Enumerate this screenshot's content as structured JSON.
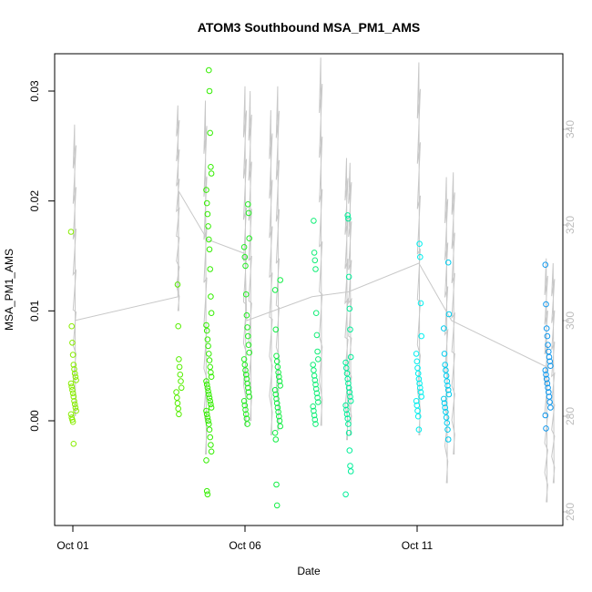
{
  "chart_data": {
    "type": "scatter",
    "title": "ATOM3 Southbound MSA_PM1_AMS",
    "xlabel": "Date",
    "ylabel": "MSA_PM1_AMS",
    "x_ticks": [
      {
        "day": 1,
        "label": "Oct 01"
      },
      {
        "day": 6,
        "label": "Oct 06"
      },
      {
        "day": 11,
        "label": "Oct 11"
      }
    ],
    "xlim": [
      1,
      15
    ],
    "ylim": [
      -0.009,
      0.033
    ],
    "y_ticks": [
      {
        "value": 0.0,
        "label": "0.00"
      },
      {
        "value": 0.01,
        "label": "0.01"
      },
      {
        "value": 0.02,
        "label": "0.02"
      },
      {
        "value": 0.03,
        "label": "0.03"
      }
    ],
    "right_axis": {
      "ylim": [
        258,
        358
      ],
      "ticks": [
        {
          "value": 260,
          "label": "260"
        },
        {
          "value": 280,
          "label": "280"
        },
        {
          "value": 300,
          "label": "300"
        },
        {
          "value": 320,
          "label": "320"
        },
        {
          "value": 340,
          "label": "340"
        }
      ],
      "color": "#bdbdbd"
    },
    "clusters": [
      {
        "day": 1.02,
        "color": "#88ee00",
        "values": [
          0.0172,
          0.0086,
          0.0071,
          0.006,
          0.0051,
          0.0047,
          0.0043,
          0.004,
          0.0037,
          0.0034,
          0.0031,
          0.0028,
          0.0025,
          0.0022,
          0.0018,
          0.0015,
          0.0012,
          0.0009,
          0.0006,
          0.0003,
          0.0001,
          -0.0001,
          -0.0021
        ]
      },
      {
        "day": 4.08,
        "color": "#55ee00",
        "values": [
          0.0124,
          0.0086,
          0.0056,
          0.0049,
          0.0042,
          0.0036,
          0.003,
          0.0026,
          0.0021,
          0.0016,
          0.0011,
          0.0006
        ]
      },
      {
        "day": 4.95,
        "color": "#33ee00",
        "values": [
          0.0319,
          0.03,
          0.0262,
          0.0231,
          0.0225,
          0.021,
          0.0198,
          0.0188,
          0.0177,
          0.0165,
          0.0156,
          0.0138,
          0.0113,
          0.0098,
          0.0087,
          0.0082,
          0.0074,
          0.0068,
          0.0061,
          0.0055,
          0.0049,
          0.0044,
          0.004,
          0.0036,
          0.0033,
          0.003,
          0.0027,
          0.0024,
          0.0021,
          0.0018,
          0.0015,
          0.0012,
          0.0009,
          0.0006,
          0.0003,
          0.0,
          -0.0003,
          -0.0008,
          -0.0015,
          -0.0022,
          -0.0028,
          -0.0036,
          -0.0064,
          -0.0067
        ]
      },
      {
        "day": 6.05,
        "color": "#22ee22",
        "values": [
          0.0197,
          0.0189,
          0.0166,
          0.0158,
          0.0149,
          0.0141,
          0.0115,
          0.0096,
          0.0085,
          0.0077,
          0.0069,
          0.0062,
          0.0056,
          0.0051,
          0.0046,
          0.0042,
          0.0038,
          0.0034,
          0.003,
          0.0026,
          0.0022,
          0.0018,
          0.0014,
          0.001,
          0.0006,
          0.0002,
          -0.0003
        ]
      },
      {
        "day": 6.95,
        "color": "#11ee44",
        "values": [
          0.0128,
          0.0119,
          0.0083,
          0.0059,
          0.0054,
          0.0049,
          0.0044,
          0.004,
          0.0036,
          0.0032,
          0.0028,
          0.0024,
          0.002,
          0.0016,
          0.0012,
          0.0008,
          0.0004,
          0.0,
          -0.0005,
          -0.0011,
          -0.0017,
          -0.0058,
          -0.0077
        ]
      },
      {
        "day": 8.05,
        "color": "#11ee77",
        "values": [
          0.0182,
          0.0153,
          0.0146,
          0.0138,
          0.0098,
          0.0078,
          0.0063,
          0.0056,
          0.0051,
          0.0046,
          0.0041,
          0.0037,
          0.0033,
          0.0029,
          0.0025,
          0.0021,
          0.0017,
          0.0013,
          0.0009,
          0.0005,
          0.0001,
          -0.0003
        ]
      },
      {
        "day": 9.0,
        "color": "#00ee99",
        "values": [
          0.0187,
          0.0184,
          0.0131,
          0.0102,
          0.0083,
          0.0058,
          0.0053,
          0.0048,
          0.0043,
          0.0038,
          0.0034,
          0.003,
          0.0026,
          0.0022,
          0.0018,
          0.0014,
          0.001,
          0.0006,
          0.0002,
          -0.0003,
          -0.0011,
          -0.0027,
          -0.0041,
          -0.0046,
          -0.0067
        ]
      },
      {
        "day": 11.05,
        "color": "#00eeee",
        "values": [
          0.0161,
          0.0149,
          0.0107,
          0.0077,
          0.0061,
          0.0054,
          0.0048,
          0.0043,
          0.0038,
          0.0034,
          0.003,
          0.0026,
          0.0022,
          0.0018,
          0.0014,
          0.0009,
          0.0004,
          -0.0008
        ]
      },
      {
        "day": 11.85,
        "color": "#00ccee",
        "values": [
          0.0144,
          0.0097,
          0.0084,
          0.0061,
          0.0051,
          0.0046,
          0.0041,
          0.0036,
          0.0032,
          0.0028,
          0.0024,
          0.002,
          0.0016,
          0.0012,
          0.0008,
          0.0003,
          -0.0002,
          -0.0008,
          -0.0017
        ]
      },
      {
        "day": 14.8,
        "color": "#1199ee",
        "values": [
          0.0142,
          0.0106,
          0.0084,
          0.0077,
          0.0069,
          0.0063,
          0.0058,
          0.0054,
          0.005,
          0.0046,
          0.0042,
          0.0038,
          0.0034,
          0.003,
          0.0026,
          0.0022,
          0.0017,
          0.0012,
          0.0005,
          -0.0007
        ]
      }
    ],
    "alt_spikes": [
      {
        "day": 1.05,
        "top": 341,
        "bottom": 280
      },
      {
        "day": 4.05,
        "top": 345,
        "bottom": 302
      },
      {
        "day": 4.85,
        "top": 346,
        "bottom": 272
      },
      {
        "day": 6.0,
        "top": 349,
        "bottom": 278
      },
      {
        "day": 6.15,
        "top": 348,
        "bottom": 279
      },
      {
        "day": 6.75,
        "top": 344,
        "bottom": 276
      },
      {
        "day": 6.95,
        "top": 349,
        "bottom": 277
      },
      {
        "day": 8.2,
        "top": 355,
        "bottom": 278
      },
      {
        "day": 8.95,
        "top": 334,
        "bottom": 275
      },
      {
        "day": 9.05,
        "top": 333,
        "bottom": 276
      },
      {
        "day": 11.05,
        "top": 354,
        "bottom": 276
      },
      {
        "day": 11.85,
        "top": 330,
        "bottom": 266
      },
      {
        "day": 12.05,
        "top": 331,
        "bottom": 272
      },
      {
        "day": 14.75,
        "top": 313,
        "bottom": 262
      },
      {
        "day": 14.95,
        "top": 312,
        "bottom": 266
      }
    ],
    "alt_track": [
      {
        "day": 1.05,
        "value": 300
      },
      {
        "day": 4.05,
        "value": 305
      },
      {
        "day": 4.08,
        "value": 327
      },
      {
        "day": 4.9,
        "value": 317
      },
      {
        "day": 6.0,
        "value": 314
      },
      {
        "day": 6.05,
        "value": 300
      },
      {
        "day": 7.95,
        "value": 305
      },
      {
        "day": 9.0,
        "value": 306
      },
      {
        "day": 11.05,
        "value": 312
      },
      {
        "day": 12.0,
        "value": 300
      },
      {
        "day": 14.85,
        "value": 290
      }
    ]
  }
}
